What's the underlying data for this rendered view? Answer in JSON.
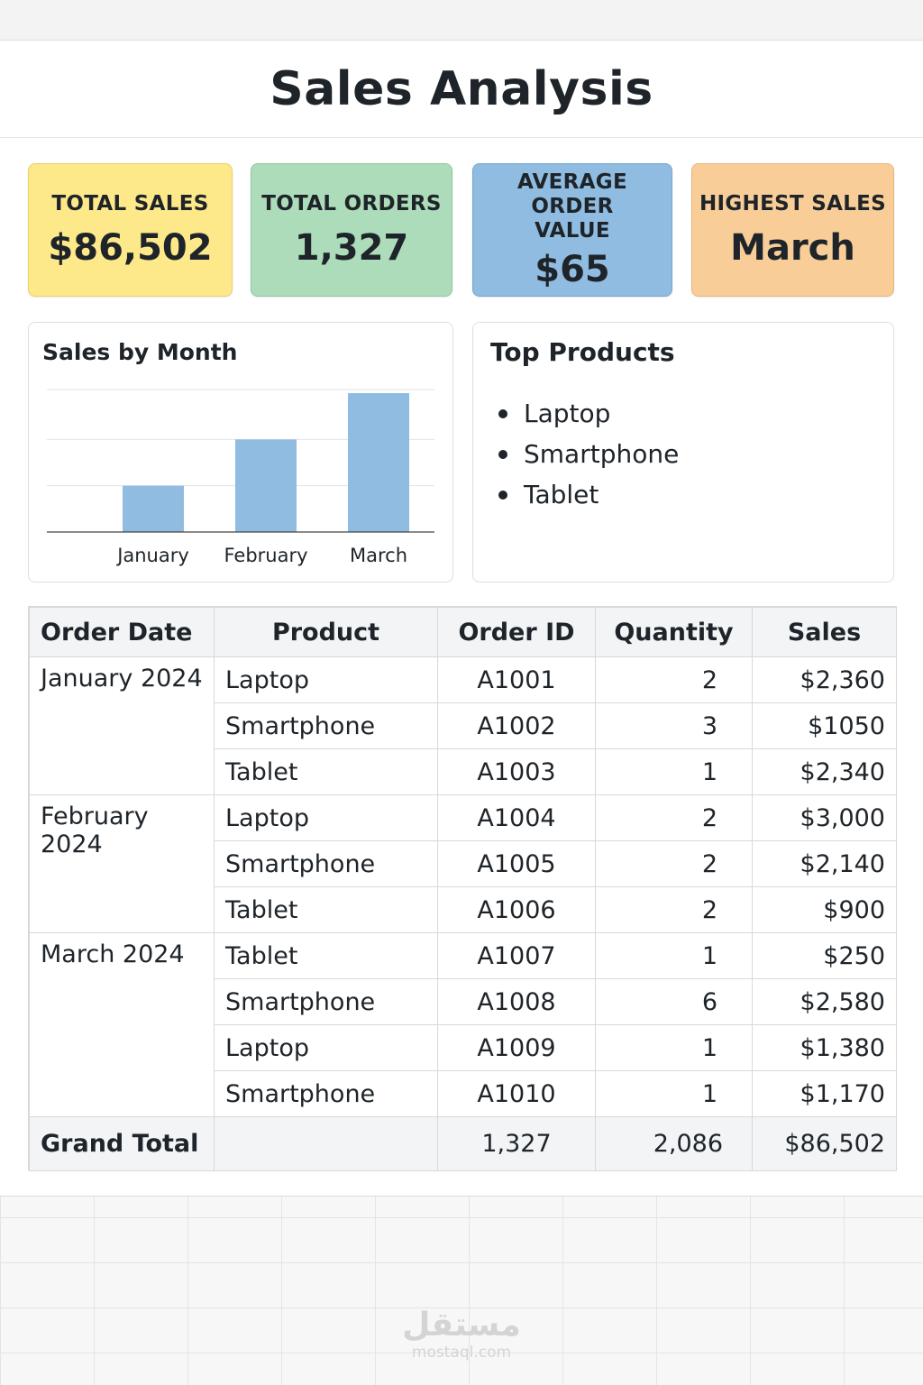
{
  "title": "Sales Analysis",
  "kpis": {
    "total_sales": {
      "label": "TOTAL SALES",
      "value": "$86,502"
    },
    "total_orders": {
      "label": "TOTAL ORDERS",
      "value": "1,327"
    },
    "avg_order": {
      "label_line1": "AVERAGE ORDER",
      "label_line2": "VALUE",
      "value": "$65"
    },
    "highest_sales": {
      "label": "HIGHEST SALES",
      "value": "March"
    }
  },
  "chart_panel": {
    "title": "Sales by Month"
  },
  "chart_data": {
    "type": "bar",
    "title": "Sales by Month",
    "categories": [
      "January",
      "February",
      "March"
    ],
    "values": [
      1,
      2,
      3
    ],
    "ylim": [
      0,
      3
    ],
    "grid": true,
    "bar_color": "#8fbce0"
  },
  "top_products": {
    "title": "Top Products",
    "items": [
      "Laptop",
      "Smartphone",
      "Tablet"
    ]
  },
  "table": {
    "headers": [
      "Order Date",
      "Product",
      "Order ID",
      "Quantity",
      "Sales"
    ],
    "groups": [
      {
        "date": "January 2024",
        "rows": [
          {
            "product": "Laptop",
            "id": "A1001",
            "qty": "2",
            "sales": "$2,360"
          },
          {
            "product": "Smartphone",
            "id": "A1002",
            "qty": "3",
            "sales": "$1050"
          },
          {
            "product": "Tablet",
            "id": "A1003",
            "qty": "1",
            "sales": "$2,340"
          }
        ]
      },
      {
        "date": "February 2024",
        "rows": [
          {
            "product": "Laptop",
            "id": "A1004",
            "qty": "2",
            "sales": "$3,000"
          },
          {
            "product": "Smartphone",
            "id": "A1005",
            "qty": "2",
            "sales": "$2,140"
          },
          {
            "product": "Tablet",
            "id": "A1006",
            "qty": "2",
            "sales": "$900"
          }
        ]
      },
      {
        "date": "March 2024",
        "rows": [
          {
            "product": "Tablet",
            "id": "A1007",
            "qty": "1",
            "sales": "$250"
          },
          {
            "product": "Smartphone",
            "id": "A1008",
            "qty": "6",
            "sales": "$2,580"
          },
          {
            "product": "Laptop",
            "id": "A1009",
            "qty": "1",
            "sales": "$1,380"
          },
          {
            "product": "Smartphone",
            "id": "A1010",
            "qty": "1",
            "sales": "$1,170"
          }
        ]
      }
    ],
    "total": {
      "label": "Grand Total",
      "id": "1,327",
      "qty": "2,086",
      "sales": "$86,502"
    }
  },
  "watermark": {
    "logo": "مستقل",
    "site": "mostaql.com"
  }
}
